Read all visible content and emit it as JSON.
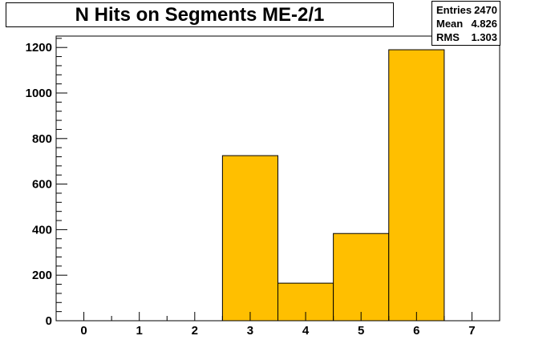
{
  "chart_data": {
    "type": "bar",
    "title": "N Hits on Segments ME-2/1",
    "xlabel": "",
    "ylabel": "",
    "bins": [
      {
        "x": 0,
        "value": 0
      },
      {
        "x": 1,
        "value": 0
      },
      {
        "x": 2,
        "value": 0
      },
      {
        "x": 3,
        "value": 725
      },
      {
        "x": 4,
        "value": 165
      },
      {
        "x": 5,
        "value": 383
      },
      {
        "x": 6,
        "value": 1190
      },
      {
        "x": 7,
        "value": 0
      }
    ],
    "xlim": [
      -0.5,
      7.5
    ],
    "ylim": [
      0,
      1250
    ],
    "x_ticks": [
      "0",
      "1",
      "2",
      "3",
      "4",
      "5",
      "6",
      "7"
    ],
    "y_ticks": [
      0,
      200,
      400,
      600,
      800,
      1000,
      1200
    ],
    "fill_color": "#ffbf00",
    "grid": false
  },
  "stats": {
    "entries_label": "Entries",
    "entries_value": "2470",
    "mean_label": "Mean",
    "mean_value": "4.826",
    "rms_label": "RMS",
    "rms_value": "1.303"
  }
}
